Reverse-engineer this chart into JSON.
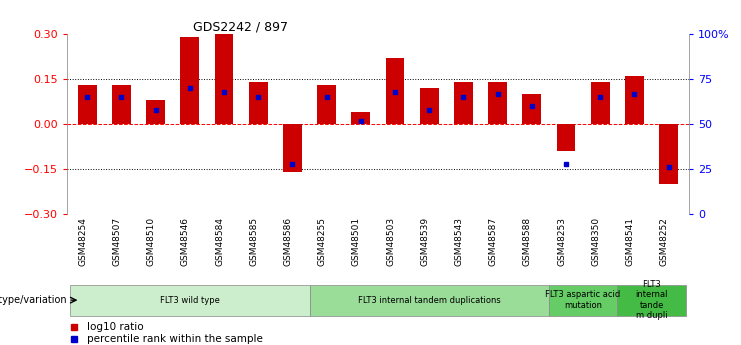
{
  "title": "GDS2242 / 897",
  "samples": [
    "GSM48254",
    "GSM48507",
    "GSM48510",
    "GSM48546",
    "GSM48584",
    "GSM48585",
    "GSM48586",
    "GSM48255",
    "GSM48501",
    "GSM48503",
    "GSM48539",
    "GSM48543",
    "GSM48587",
    "GSM48588",
    "GSM48253",
    "GSM48350",
    "GSM48541",
    "GSM48252"
  ],
  "log10_ratio": [
    0.13,
    0.13,
    0.08,
    0.29,
    0.3,
    0.14,
    -0.16,
    0.13,
    0.04,
    0.22,
    0.12,
    0.14,
    0.14,
    0.1,
    -0.09,
    0.14,
    0.16,
    -0.2
  ],
  "percentile_rank": [
    65,
    65,
    58,
    70,
    68,
    65,
    28,
    65,
    52,
    68,
    58,
    65,
    67,
    60,
    28,
    65,
    67,
    26
  ],
  "ylim": [
    -0.3,
    0.3
  ],
  "yticks_left": [
    -0.3,
    -0.15,
    0.0,
    0.15,
    0.3
  ],
  "yticks_right_vals": [
    -0.3,
    -0.15,
    0.0,
    0.15,
    0.3
  ],
  "yticks_right_labels": [
    "0",
    "25",
    "50",
    "75",
    "100%"
  ],
  "dotted_lines": [
    -0.15,
    0.15
  ],
  "zero_line": 0.0,
  "groups": [
    {
      "label": "FLT3 wild type",
      "start": 0,
      "end": 7,
      "color": "#cceecc"
    },
    {
      "label": "FLT3 internal tandem duplications",
      "start": 7,
      "end": 14,
      "color": "#99dd99"
    },
    {
      "label": "FLT3 aspartic acid\nmutation",
      "start": 14,
      "end": 16,
      "color": "#66cc66"
    },
    {
      "label": "FLT3\ninternal\ntande\nm dupli",
      "start": 16,
      "end": 18,
      "color": "#44bb44"
    }
  ],
  "bar_color": "#cc0000",
  "dot_color": "#0000cc",
  "bar_width": 0.55,
  "background_color": "#ffffff",
  "genotype_label": "genotype/variation"
}
